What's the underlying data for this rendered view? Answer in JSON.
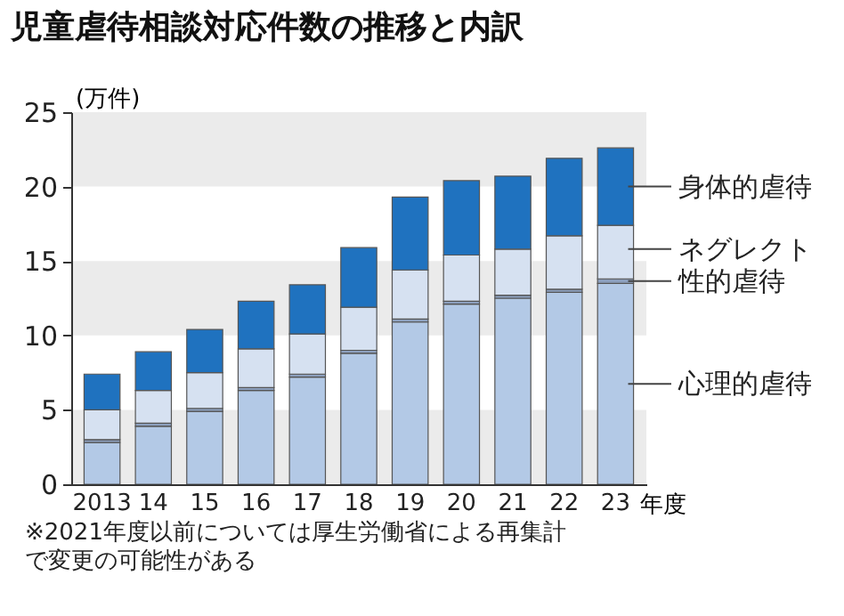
{
  "chart_data": {
    "type": "bar",
    "title": "児童虐待相談対応件数の推移と内訳",
    "ylabel": "(万件)",
    "xlabel": "年度",
    "categories": [
      "2013",
      "14",
      "15",
      "16",
      "17",
      "18",
      "19",
      "20",
      "21",
      "22",
      "23"
    ],
    "stacked": true,
    "series": [
      {
        "name": "心理的虐待",
        "color": "#b3c9e6",
        "values": [
          2.8,
          3.9,
          4.9,
          6.3,
          7.2,
          8.8,
          10.9,
          12.1,
          12.5,
          12.9,
          13.5
        ]
      },
      {
        "name": "性的虐待",
        "color": "#8c9fbd",
        "values": [
          0.2,
          0.2,
          0.2,
          0.2,
          0.2,
          0.2,
          0.2,
          0.2,
          0.2,
          0.2,
          0.3
        ]
      },
      {
        "name": "ネグレクト",
        "color": "#d6e1f1",
        "values": [
          2.0,
          2.2,
          2.4,
          2.6,
          2.7,
          2.9,
          3.3,
          3.1,
          3.1,
          3.6,
          3.6
        ]
      },
      {
        "name": "身体的虐待",
        "color": "#1f72bf",
        "values": [
          2.4,
          2.6,
          2.9,
          3.2,
          3.3,
          4.0,
          4.9,
          5.0,
          4.9,
          5.2,
          5.2
        ]
      }
    ],
    "ylim": [
      0,
      25
    ],
    "yticks": [
      0,
      5,
      10,
      15,
      20,
      25
    ],
    "legend": "right",
    "bands": [
      {
        "axis": "y",
        "from": 0,
        "to": 5,
        "color": "#ebebeb"
      },
      {
        "axis": "y",
        "from": 10,
        "to": 15,
        "color": "#ebebeb"
      },
      {
        "axis": "y",
        "from": 20,
        "to": 25,
        "color": "#ebebeb"
      }
    ],
    "annotations": [
      "※2021年度以前については厚生労働省による再集計で変更の可能性がある"
    ]
  }
}
